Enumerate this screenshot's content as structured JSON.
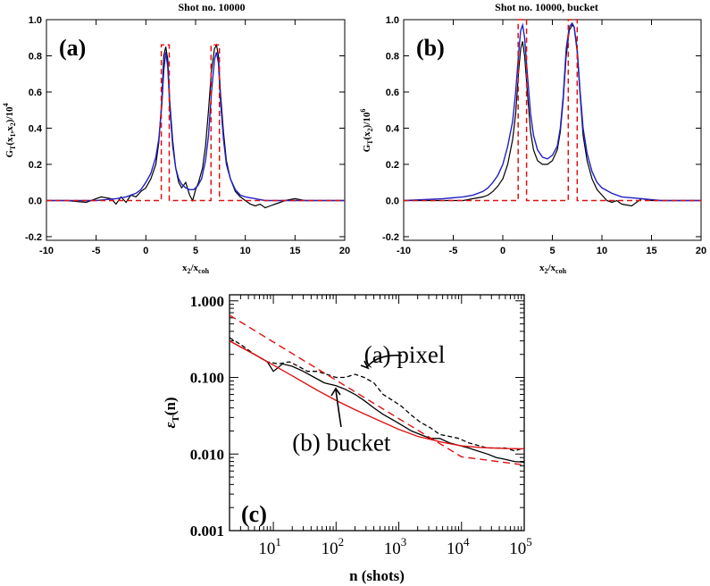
{
  "chart_data": [
    {
      "type": "line",
      "panel_label": "(a)",
      "title": "Shot no. 10000",
      "ylabel_main": "G",
      "ylabel_sub": "T",
      "ylabel_mid": "(x",
      "ylabel_mid_sub1": "1",
      "ylabel_mid2": ",x",
      "ylabel_mid_sub2": "2",
      "ylabel_mid3": ")/10",
      "ylabel_sup": "4",
      "xlabel_main": "x",
      "xlabel_sub1": "2",
      "xlabel_mid": "/x",
      "xlabel_sub2": "coh",
      "xlim": [
        -10,
        20
      ],
      "ylim": [
        -0.22,
        1.0
      ],
      "xticks": [
        "-10",
        "-5",
        "0",
        "5",
        "10",
        "15",
        "20"
      ],
      "xtick_values": [
        -10,
        -5,
        0,
        5,
        10,
        15,
        20
      ],
      "yticks": [
        "-0.2",
        "0.0",
        "0.2",
        "0.4",
        "0.6",
        "0.8",
        "1.0"
      ],
      "ytick_values": [
        -0.2,
        0.0,
        0.2,
        0.4,
        0.6,
        0.8,
        1.0
      ],
      "series": [
        {
          "color": "#000000",
          "dash": "",
          "width": 1.2,
          "x": [
            -10,
            -8,
            -6,
            -4.5,
            -3.5,
            -3,
            -2.5,
            -2,
            -1.5,
            -1,
            -0.5,
            0,
            0.5,
            1,
            1.3,
            1.6,
            1.8,
            2,
            2.2,
            2.4,
            2.7,
            3,
            3.3,
            3.6,
            4,
            4.4,
            4.7,
            5,
            5.3,
            5.7,
            6,
            6.3,
            6.6,
            6.9,
            7.1,
            7.3,
            7.5,
            7.8,
            8.1,
            8.5,
            9,
            9.5,
            10,
            10.5,
            11,
            11.5,
            12,
            12.5,
            13,
            14,
            15,
            16,
            17,
            18,
            20
          ],
          "y": [
            0,
            0,
            -0.01,
            0.02,
            0.01,
            -0.02,
            0.02,
            -0.01,
            0.03,
            0.02,
            0.05,
            0.07,
            0.12,
            0.2,
            0.32,
            0.55,
            0.8,
            0.85,
            0.78,
            0.55,
            0.33,
            0.18,
            0.1,
            0.07,
            0.1,
            0.03,
            0.0,
            0.06,
            0.1,
            0.18,
            0.3,
            0.5,
            0.72,
            0.84,
            0.86,
            0.8,
            0.6,
            0.38,
            0.22,
            0.12,
            0.05,
            0.02,
            0.0,
            -0.02,
            -0.03,
            -0.02,
            -0.04,
            -0.03,
            -0.02,
            0.0,
            0.01,
            0.0,
            0,
            0,
            0
          ]
        },
        {
          "color": "#2020c8",
          "dash": "",
          "width": 1.4,
          "x": [
            -10,
            -5,
            -3,
            -2,
            -1,
            -0.5,
            0,
            0.5,
            1,
            1.3,
            1.6,
            1.8,
            2,
            2.2,
            2.4,
            2.7,
            3,
            3.3,
            3.6,
            4,
            4.4,
            4.8,
            5.2,
            5.6,
            6,
            6.3,
            6.6,
            6.9,
            7.1,
            7.3,
            7.5,
            7.8,
            8.1,
            8.5,
            9,
            9.5,
            10,
            11,
            12,
            14,
            16,
            20
          ],
          "y": [
            0,
            0,
            0.01,
            0.02,
            0.04,
            0.06,
            0.1,
            0.15,
            0.24,
            0.34,
            0.52,
            0.72,
            0.82,
            0.74,
            0.52,
            0.3,
            0.18,
            0.12,
            0.09,
            0.07,
            0.06,
            0.06,
            0.08,
            0.12,
            0.22,
            0.36,
            0.6,
            0.78,
            0.82,
            0.76,
            0.56,
            0.34,
            0.2,
            0.12,
            0.06,
            0.03,
            0.02,
            0.01,
            0,
            0,
            0,
            0
          ]
        },
        {
          "color": "#e01010",
          "dash": "6,4",
          "width": 1.5,
          "x": [
            -10,
            1.55,
            1.55,
            2.35,
            2.35,
            6.55,
            6.55,
            7.4,
            7.4,
            20
          ],
          "y": [
            0,
            0,
            0.86,
            0.86,
            0,
            0,
            0.86,
            0.86,
            0,
            0
          ]
        }
      ]
    },
    {
      "type": "line",
      "panel_label": "(b)",
      "title": "Shot no. 10000, bucket",
      "ylabel_main": "G",
      "ylabel_sub": "T",
      "ylabel_mid": "(x",
      "ylabel_mid_sub1": "2",
      "ylabel_mid2": "",
      "ylabel_mid_sub2": "",
      "ylabel_mid3": ")/10",
      "ylabel_sup": "6",
      "xlabel_main": "x",
      "xlabel_sub1": "2",
      "xlabel_mid": "/x",
      "xlabel_sub2": "coh",
      "xlim": [
        -10,
        20
      ],
      "ylim": [
        -0.22,
        1.0
      ],
      "xticks": [
        "-10",
        "-5",
        "0",
        "5",
        "10",
        "15",
        "20"
      ],
      "xtick_values": [
        -10,
        -5,
        0,
        5,
        10,
        15,
        20
      ],
      "yticks": [
        "-0.2",
        "0.0",
        "0.2",
        "0.4",
        "0.6",
        "0.8",
        "1.0"
      ],
      "ytick_values": [
        -0.2,
        0.0,
        0.2,
        0.4,
        0.6,
        0.8,
        1.0
      ],
      "series": [
        {
          "color": "#000000",
          "dash": "",
          "width": 1.2,
          "x": [
            -10,
            -6,
            -4,
            -3,
            -2,
            -1.5,
            -1,
            -0.5,
            0,
            0.5,
            1,
            1.3,
            1.6,
            1.8,
            2,
            2.2,
            2.5,
            2.8,
            3.1,
            3.5,
            4,
            4.5,
            5,
            5.5,
            5.8,
            6.1,
            6.4,
            6.7,
            7,
            7.2,
            7.5,
            7.8,
            8.1,
            8.5,
            9,
            9.5,
            10,
            10.5,
            11,
            11.5,
            12,
            13,
            14,
            15,
            16,
            17,
            20
          ],
          "y": [
            0,
            0,
            0,
            0.01,
            0.02,
            0.03,
            0.05,
            0.08,
            0.12,
            0.2,
            0.34,
            0.48,
            0.72,
            0.84,
            0.88,
            0.8,
            0.58,
            0.38,
            0.28,
            0.22,
            0.2,
            0.2,
            0.22,
            0.28,
            0.38,
            0.56,
            0.8,
            0.94,
            0.97,
            0.96,
            0.82,
            0.58,
            0.36,
            0.22,
            0.12,
            0.06,
            0.03,
            0.0,
            -0.01,
            0.0,
            -0.02,
            -0.03,
            0.01,
            0,
            0,
            0,
            0
          ]
        },
        {
          "color": "#2020c8",
          "dash": "",
          "width": 1.4,
          "x": [
            -10,
            -6,
            -4,
            -3,
            -2,
            -1.5,
            -1,
            -0.5,
            0,
            0.5,
            1,
            1.3,
            1.6,
            1.8,
            2,
            2.2,
            2.5,
            2.8,
            3.1,
            3.5,
            4,
            4.5,
            5,
            5.5,
            5.8,
            6.1,
            6.4,
            6.7,
            7,
            7.2,
            7.5,
            7.8,
            8.1,
            8.5,
            9,
            9.5,
            10,
            11,
            12,
            14,
            16,
            20
          ],
          "y": [
            0,
            0.01,
            0.02,
            0.03,
            0.05,
            0.07,
            0.1,
            0.14,
            0.2,
            0.3,
            0.44,
            0.6,
            0.82,
            0.94,
            0.97,
            0.9,
            0.68,
            0.48,
            0.36,
            0.28,
            0.24,
            0.23,
            0.25,
            0.3,
            0.4,
            0.58,
            0.84,
            0.96,
            0.98,
            0.96,
            0.84,
            0.6,
            0.4,
            0.26,
            0.16,
            0.1,
            0.07,
            0.04,
            0.02,
            0.01,
            0,
            0
          ]
        },
        {
          "color": "#e01010",
          "dash": "6,4",
          "width": 1.5,
          "x": [
            -10,
            1.55,
            1.55,
            2.4,
            2.4,
            6.6,
            6.6,
            7.5,
            7.5,
            20
          ],
          "y": [
            0,
            0,
            1.0,
            1.0,
            0,
            0,
            1.0,
            1.0,
            0,
            0
          ]
        }
      ]
    },
    {
      "type": "line",
      "panel_label": "(c)",
      "ylabel_main": "ε",
      "ylabel_sub": "T",
      "ylabel_rest": "(n)",
      "xlabel": "n (shots)",
      "xscale": "log",
      "yscale": "log",
      "xlim": [
        2,
        100000
      ],
      "ylim": [
        0.001,
        1.2
      ],
      "xticks": [
        "1",
        "2",
        "3",
        "4",
        "5"
      ],
      "xtick_values": [
        10,
        100,
        1000,
        10000,
        100000
      ],
      "xtick_base": "10",
      "yticks": [
        "0.001",
        "0.010",
        "0.100",
        "1.000"
      ],
      "ytick_values": [
        0.001,
        0.01,
        0.1,
        1.0
      ],
      "annotations": [
        {
          "text": "(a) pixel",
          "x": 280,
          "y": 0.155
        },
        {
          "text": "(b) bucket",
          "x": 20,
          "y": 0.011
        }
      ],
      "series": [
        {
          "color": "#000000",
          "dash": "5,3",
          "width": 1.3,
          "x": [
            2,
            3,
            5,
            8,
            12,
            18,
            25,
            35,
            50,
            70,
            100,
            140,
            200,
            280,
            400,
            560,
            800,
            1100,
            1600,
            2200,
            3200,
            4500,
            6400,
            9000,
            13000,
            18000,
            26000,
            36000,
            50000,
            70000,
            100000
          ],
          "y": [
            0.33,
            0.27,
            0.2,
            0.16,
            0.15,
            0.16,
            0.14,
            0.12,
            0.12,
            0.11,
            0.1,
            0.1,
            0.11,
            0.1,
            0.085,
            0.06,
            0.05,
            0.042,
            0.032,
            0.026,
            0.022,
            0.018,
            0.017,
            0.016,
            0.014,
            0.013,
            0.012,
            0.012,
            0.012,
            0.011,
            0.012
          ]
        },
        {
          "color": "#000000",
          "dash": "",
          "width": 1.3,
          "x": [
            2,
            3,
            5,
            8,
            10,
            14,
            20,
            30,
            45,
            65,
            100,
            140,
            200,
            280,
            400,
            560,
            800,
            1100,
            1600,
            2200,
            3200,
            4500,
            6400,
            9000,
            13000,
            18000,
            26000,
            36000,
            50000,
            70000,
            100000
          ],
          "y": [
            0.3,
            0.25,
            0.2,
            0.16,
            0.12,
            0.15,
            0.14,
            0.12,
            0.1,
            0.085,
            0.078,
            0.07,
            0.06,
            0.05,
            0.04,
            0.033,
            0.028,
            0.024,
            0.02,
            0.018,
            0.016,
            0.016,
            0.014,
            0.013,
            0.012,
            0.011,
            0.01,
            0.009,
            0.0085,
            0.008,
            0.0078
          ]
        },
        {
          "color": "#e01010",
          "dash": "8,5",
          "width": 1.4,
          "x": [
            2,
            10,
            100,
            1000,
            10000,
            100000
          ],
          "y": [
            0.65,
            0.29,
            0.092,
            0.029,
            0.0092,
            0.0072
          ]
        },
        {
          "color": "#e01010",
          "dash": "",
          "width": 1.4,
          "x": [
            2,
            5,
            10,
            20,
            50,
            100,
            200,
            500,
            1000,
            2000,
            5000,
            10000,
            20000,
            50000,
            100000
          ],
          "y": [
            0.3,
            0.2,
            0.145,
            0.105,
            0.068,
            0.05,
            0.038,
            0.027,
            0.021,
            0.017,
            0.0142,
            0.0128,
            0.0122,
            0.0118,
            0.0117
          ]
        }
      ]
    }
  ]
}
